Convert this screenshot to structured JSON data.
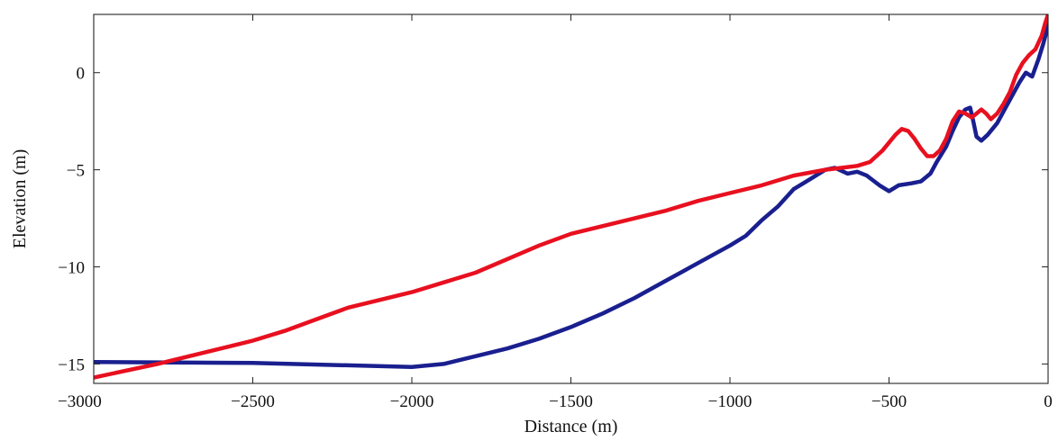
{
  "chart_data": {
    "type": "line",
    "title": "",
    "xlabel": "Distance (m)",
    "ylabel": "Elevation (m)",
    "xlim": [
      -3000,
      0
    ],
    "ylim": [
      -16,
      3
    ],
    "grid": false,
    "xticks": [
      -3000,
      -2500,
      -2000,
      -1500,
      -1000,
      -500,
      0
    ],
    "xtick_labels": [
      "−3000",
      "−2500",
      "−2000",
      "−1500",
      "−1000",
      "−500",
      "0"
    ],
    "yticks": [
      0,
      -5,
      -10,
      -15
    ],
    "ytick_labels": [
      "0",
      "−5",
      "−10",
      "−15"
    ],
    "series": [
      {
        "color": "#1a1f8f",
        "x": [
          -3000,
          -2500,
          -2000,
          -1900,
          -1800,
          -1700,
          -1600,
          -1500,
          -1400,
          -1300,
          -1200,
          -1100,
          -1000,
          -950,
          -900,
          -850,
          -800,
          -750,
          -700,
          -670,
          -630,
          -600,
          -570,
          -530,
          -500,
          -470,
          -430,
          -400,
          -370,
          -350,
          -320,
          -300,
          -280,
          -260,
          -245,
          -235,
          -225,
          -210,
          -190,
          -160,
          -120,
          -90,
          -70,
          -50,
          -30,
          -15,
          -5,
          0
        ],
        "y": [
          -14.9,
          -14.95,
          -15.15,
          -15.0,
          -14.6,
          -14.2,
          -13.7,
          -13.1,
          -12.4,
          -11.6,
          -10.7,
          -9.8,
          -8.9,
          -8.4,
          -7.6,
          -6.9,
          -6.0,
          -5.5,
          -5.0,
          -4.9,
          -5.2,
          -5.1,
          -5.3,
          -5.8,
          -6.1,
          -5.8,
          -5.7,
          -5.6,
          -5.2,
          -4.6,
          -3.8,
          -3.0,
          -2.3,
          -1.9,
          -1.8,
          -2.5,
          -3.3,
          -3.5,
          -3.2,
          -2.6,
          -1.4,
          -0.5,
          0.0,
          -0.2,
          0.7,
          1.5,
          2.1,
          2.8
        ]
      },
      {
        "color": "#e8101f",
        "x": [
          -3000,
          -2800,
          -2600,
          -2500,
          -2400,
          -2300,
          -2200,
          -2100,
          -2000,
          -1900,
          -1800,
          -1700,
          -1600,
          -1500,
          -1400,
          -1300,
          -1200,
          -1100,
          -1000,
          -900,
          -800,
          -700,
          -650,
          -600,
          -560,
          -520,
          -480,
          -460,
          -440,
          -420,
          -400,
          -380,
          -360,
          -340,
          -320,
          -300,
          -280,
          -260,
          -240,
          -225,
          -210,
          -195,
          -180,
          -160,
          -140,
          -120,
          -100,
          -80,
          -60,
          -40,
          -20,
          -10,
          0
        ],
        "y": [
          -15.7,
          -15.0,
          -14.2,
          -13.8,
          -13.3,
          -12.7,
          -12.1,
          -11.7,
          -11.3,
          -10.8,
          -10.3,
          -9.6,
          -8.9,
          -8.3,
          -7.9,
          -7.5,
          -7.1,
          -6.6,
          -6.2,
          -5.8,
          -5.3,
          -5.0,
          -4.9,
          -4.8,
          -4.6,
          -4.0,
          -3.2,
          -2.9,
          -3.0,
          -3.4,
          -3.9,
          -4.3,
          -4.3,
          -4.0,
          -3.4,
          -2.5,
          -2.0,
          -2.1,
          -2.3,
          -2.1,
          -1.9,
          -2.1,
          -2.4,
          -2.1,
          -1.6,
          -1.0,
          -0.1,
          0.5,
          0.9,
          1.2,
          1.9,
          2.5,
          3.0
        ]
      }
    ]
  }
}
